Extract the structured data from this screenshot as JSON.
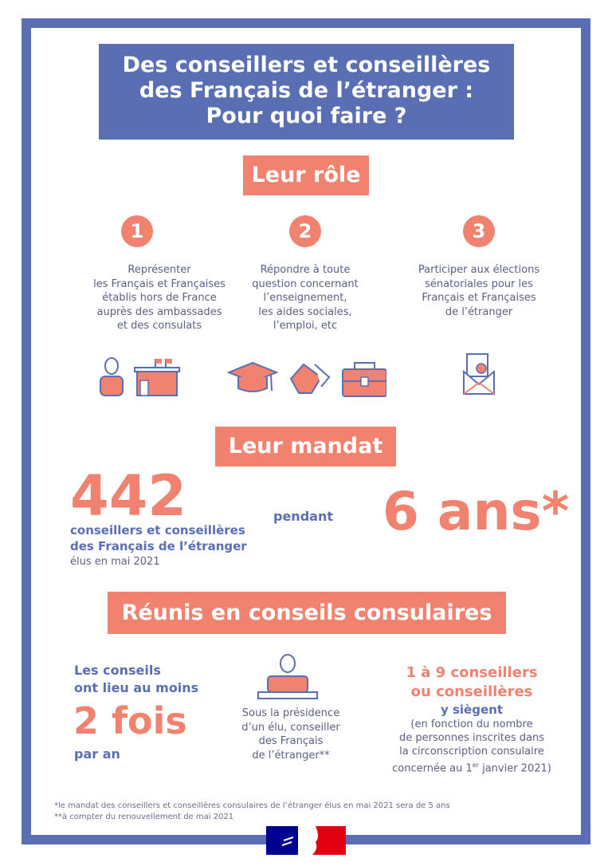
{
  "title": {
    "line1": "Des conseillers et conseillères",
    "line2": "des Français de l’étranger :",
    "line3": "Pour quoi faire ?"
  },
  "role": {
    "heading": "Leur rôle",
    "items": [
      {
        "number": "1",
        "lines": [
          "Représenter",
          "les Français et Françaises",
          "établis hors de France",
          "auprès des ambassades",
          "et des consulats"
        ],
        "icons": [
          "person-icon",
          "embassy-building-icon"
        ]
      },
      {
        "number": "2",
        "lines": [
          "Répondre à toute",
          "question concernant",
          "l’enseignement,",
          "les aides sociales,",
          "l’emploi, etc"
        ],
        "icons": [
          "graduation-cap-icon",
          "handshake-icon",
          "briefcase-icon"
        ]
      },
      {
        "number": "3",
        "lines": [
          "Participer aux élections",
          "sénatoriales pour les",
          "Français et Françaises",
          "de l’étranger"
        ],
        "icons": [
          "ballot-envelope-icon"
        ]
      }
    ]
  },
  "mandat": {
    "heading": "Leur mandat",
    "count": "442",
    "count_l1": "conseillers et conseillères",
    "count_l2": "des Français de l’étranger",
    "count_l3": "élus en mai 2021",
    "pendant": "pendant",
    "duration": "6 ans*"
  },
  "conseils": {
    "heading": "Réunis en conseils consulaires",
    "left_l1": "Les conseils",
    "left_l2": "ont lieu au moins",
    "left_big": "2 fois",
    "left_l3": "par an",
    "mid": [
      "Sous la présidence",
      "d’un élu, conseiller",
      "des Français",
      "de l’étranger**"
    ],
    "right_l1": "1 à 9 conseillers",
    "right_l2": "ou conseillères",
    "right_l3": "y siègent",
    "right_small": [
      "(en fonction du nombre",
      "de personnes inscrites dans",
      "la circonscription consulaire"
    ],
    "right_last_pre": "concernée au 1",
    "right_last_sup": "er",
    "right_last_post": " janvier 2021)"
  },
  "footnotes": [
    "*le mandat des conseillers et conseillères consulaires de l’étranger élus en mai 2021 sera de 5 ans",
    "**à compter du renouvellement de mai 2021"
  ],
  "colors": {
    "blue": "#5a6fb3",
    "salmon": "#f0826f",
    "text": "#5a5f85",
    "marianne_blue": "#000091",
    "marianne_red": "#e1000f"
  }
}
